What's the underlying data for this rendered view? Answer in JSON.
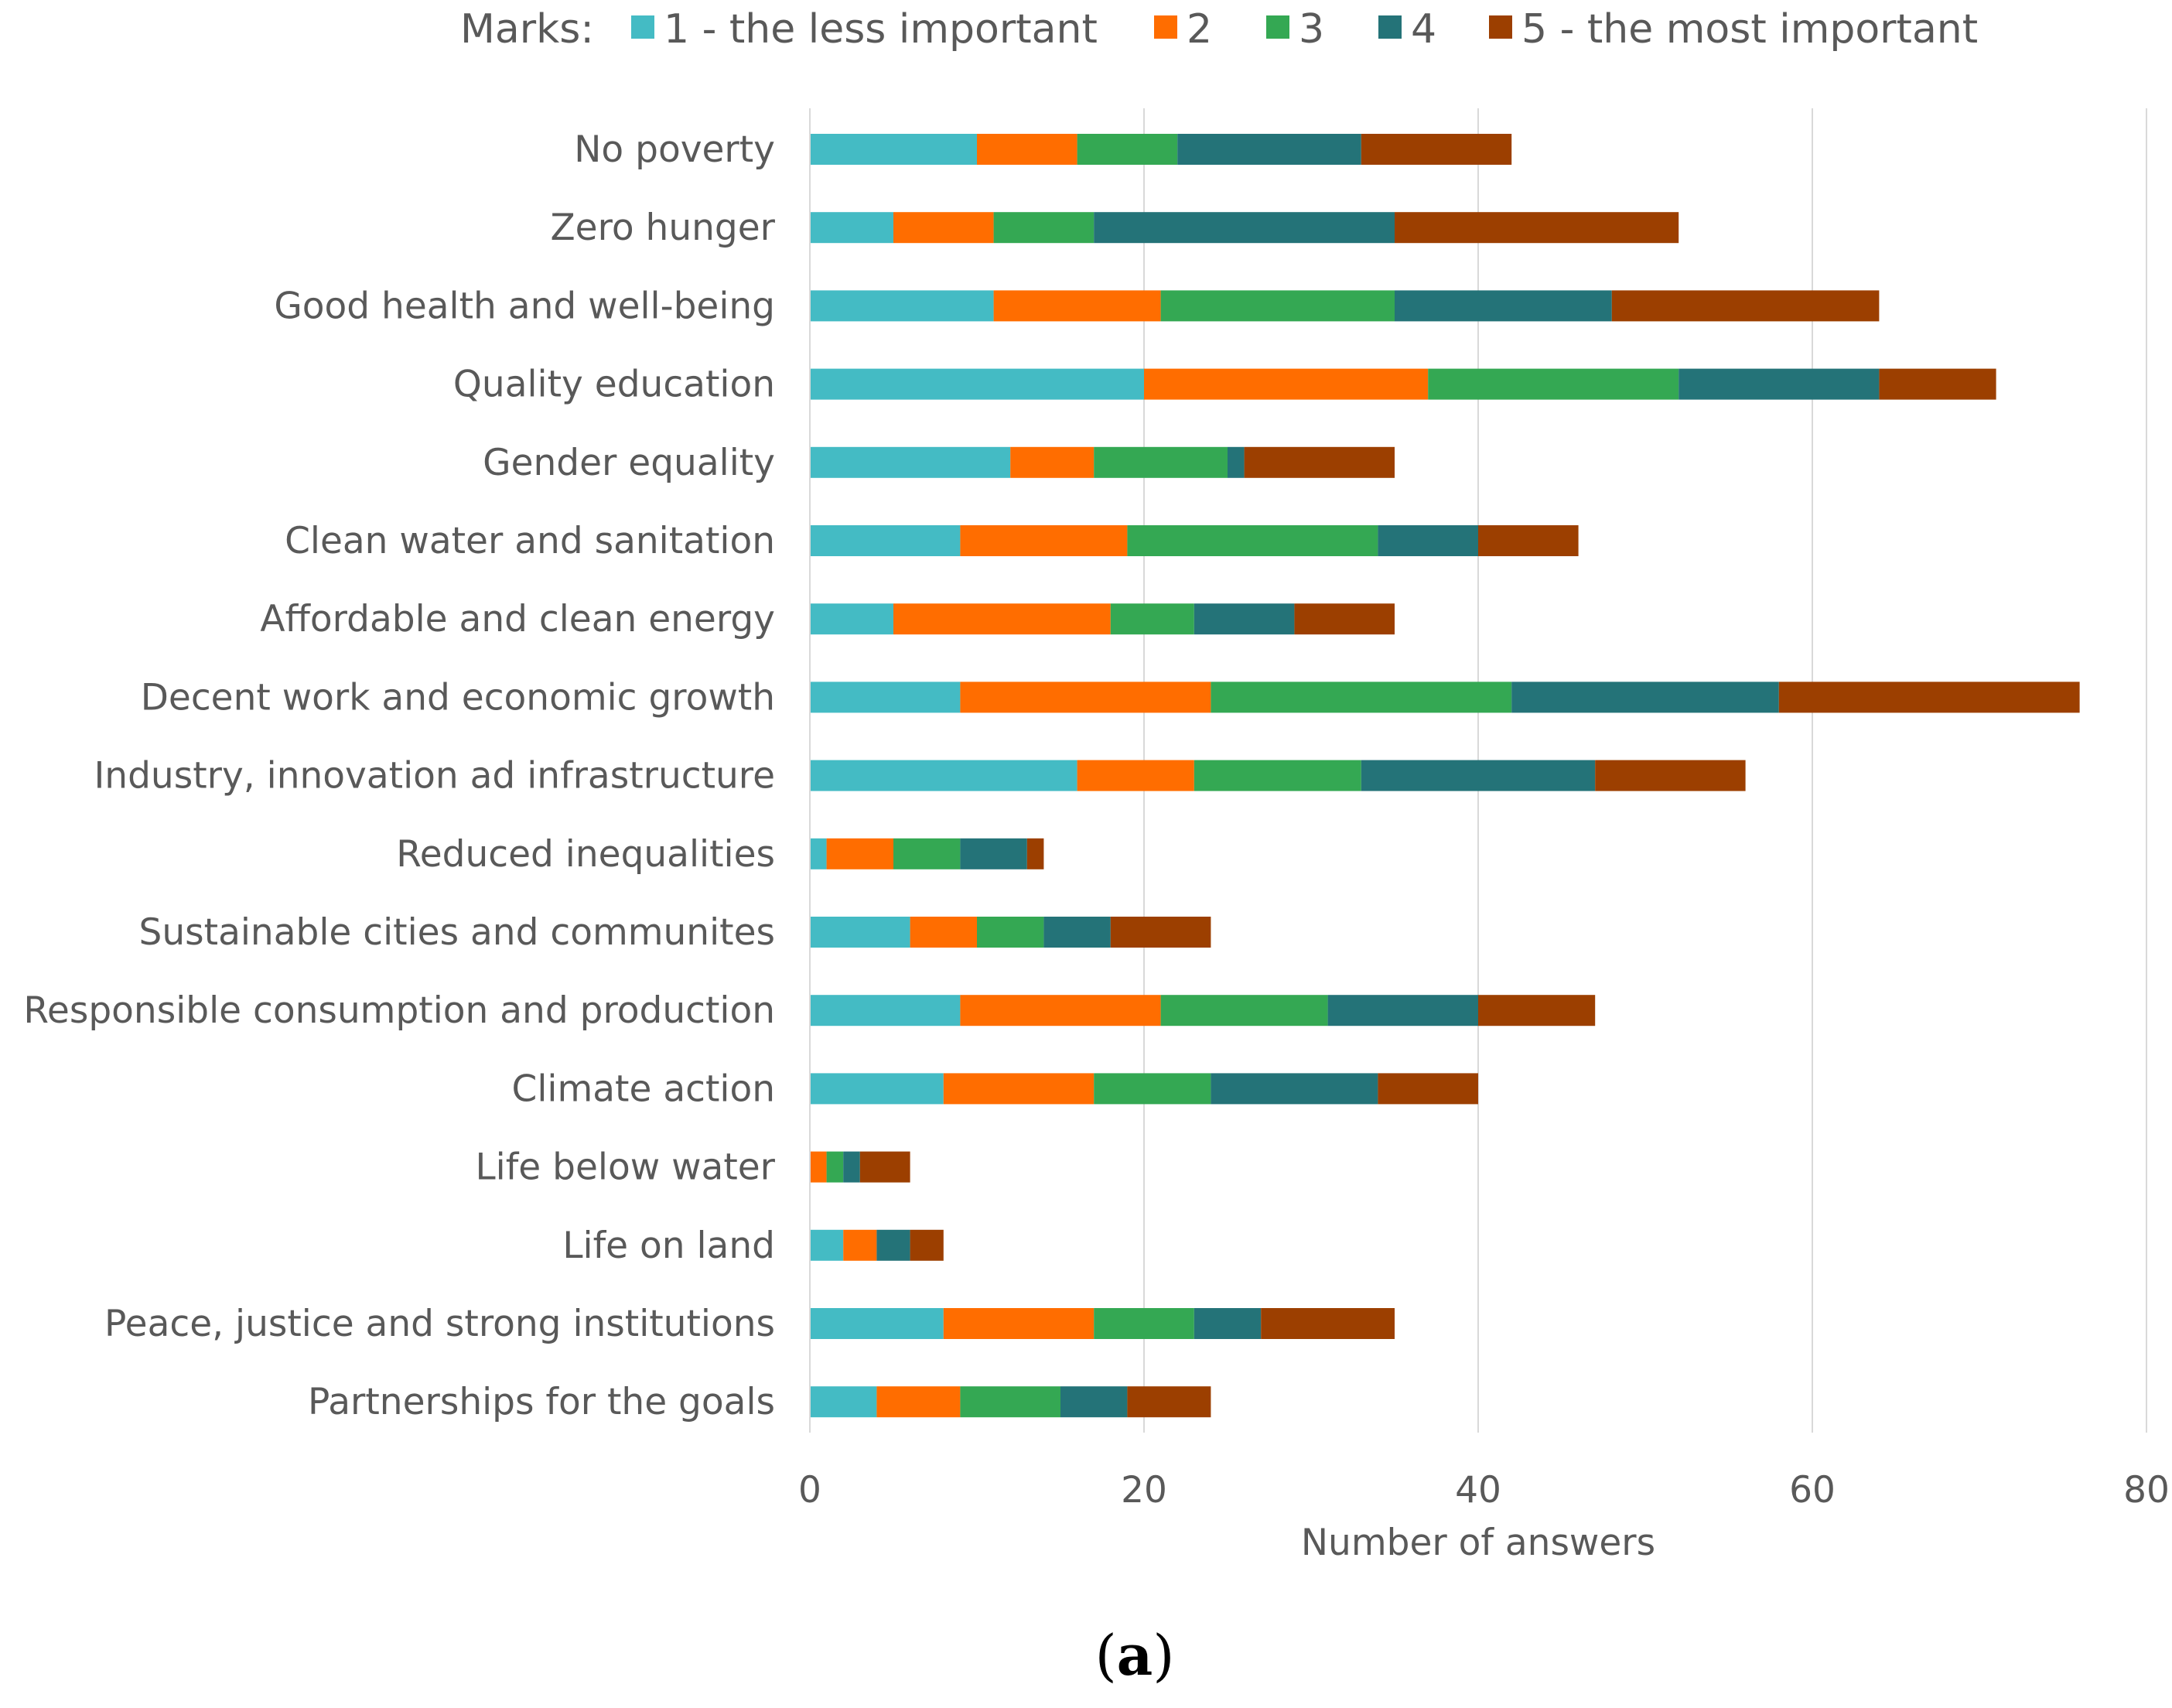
{
  "chart_data": {
    "type": "bar",
    "orientation": "horizontal",
    "stacked": true,
    "categories": [
      "No poverty",
      "Zero hunger",
      "Good health and well-being",
      "Quality education",
      "Gender equality",
      "Clean water and sanitation",
      "Affordable and clean energy",
      "Decent work and economic growth",
      "Industry, innovation ad infrastructure",
      "Reduced inequalities",
      "Sustainable cities and communites",
      "Responsible consumption and production",
      "Climate action",
      "Life below water",
      "Life on land",
      "Peace, justice and strong institutions",
      "Partnerships for the goals"
    ],
    "series": [
      {
        "name": "1 - the less important",
        "color": "#44BBC4",
        "values": [
          10,
          5,
          11,
          20,
          12,
          9,
          5,
          9,
          16,
          1,
          6,
          9,
          8,
          0,
          2,
          8,
          4
        ]
      },
      {
        "name": "2",
        "color": "#FF6D00",
        "values": [
          6,
          6,
          10,
          17,
          5,
          10,
          13,
          15,
          7,
          4,
          4,
          12,
          9,
          1,
          2,
          9,
          5
        ]
      },
      {
        "name": "3",
        "color": "#34A853",
        "values": [
          6,
          6,
          14,
          15,
          8,
          15,
          5,
          18,
          10,
          4,
          4,
          10,
          7,
          1,
          0,
          6,
          6
        ]
      },
      {
        "name": "4",
        "color": "#247378",
        "values": [
          11,
          18,
          13,
          12,
          1,
          6,
          6,
          16,
          14,
          4,
          4,
          9,
          10,
          1,
          2,
          4,
          4
        ]
      },
      {
        "name": "5 - the most important",
        "color": "#9C3F00",
        "values": [
          9,
          17,
          16,
          7,
          9,
          6,
          6,
          18,
          9,
          1,
          6,
          7,
          6,
          3,
          2,
          8,
          5
        ]
      }
    ],
    "legend_title": "Marks:",
    "legend_position": "top",
    "xlabel": "Number of answers",
    "ylabel": "",
    "xlim": [
      0,
      80
    ],
    "xticks": [
      0,
      20,
      40,
      60,
      80
    ],
    "grid": true,
    "gridline_color": "#d9d9d9"
  },
  "caption": {
    "open": "(",
    "letter": "a",
    "close": ")"
  }
}
